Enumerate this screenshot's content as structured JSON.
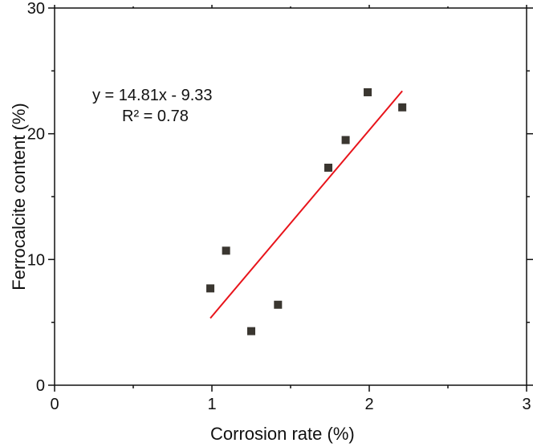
{
  "chart_data": {
    "type": "scatter",
    "title": "",
    "xlabel": "Corrosion rate (%)",
    "ylabel": "Ferrocalcite content (%)",
    "xlim": [
      0,
      3
    ],
    "ylim": [
      0,
      30
    ],
    "xticks": [
      "0",
      "1",
      "2",
      "3"
    ],
    "yticks": [
      "0",
      "10",
      "20",
      "30"
    ],
    "points": [
      [
        0.99,
        7.7
      ],
      [
        1.09,
        10.7
      ],
      [
        1.25,
        4.3
      ],
      [
        1.42,
        6.4
      ],
      [
        1.74,
        17.3
      ],
      [
        1.85,
        19.5
      ],
      [
        1.99,
        23.3
      ],
      [
        2.21,
        22.1
      ]
    ],
    "fit": {
      "slope": 14.81,
      "intercept": -9.33,
      "x_range": [
        0.99,
        2.21
      ],
      "color": "#e8141b"
    },
    "marker_color": "#3a3630",
    "annotation": {
      "equation": "y = 14.81x - 9.33",
      "r2": "R² = 0.78"
    }
  }
}
